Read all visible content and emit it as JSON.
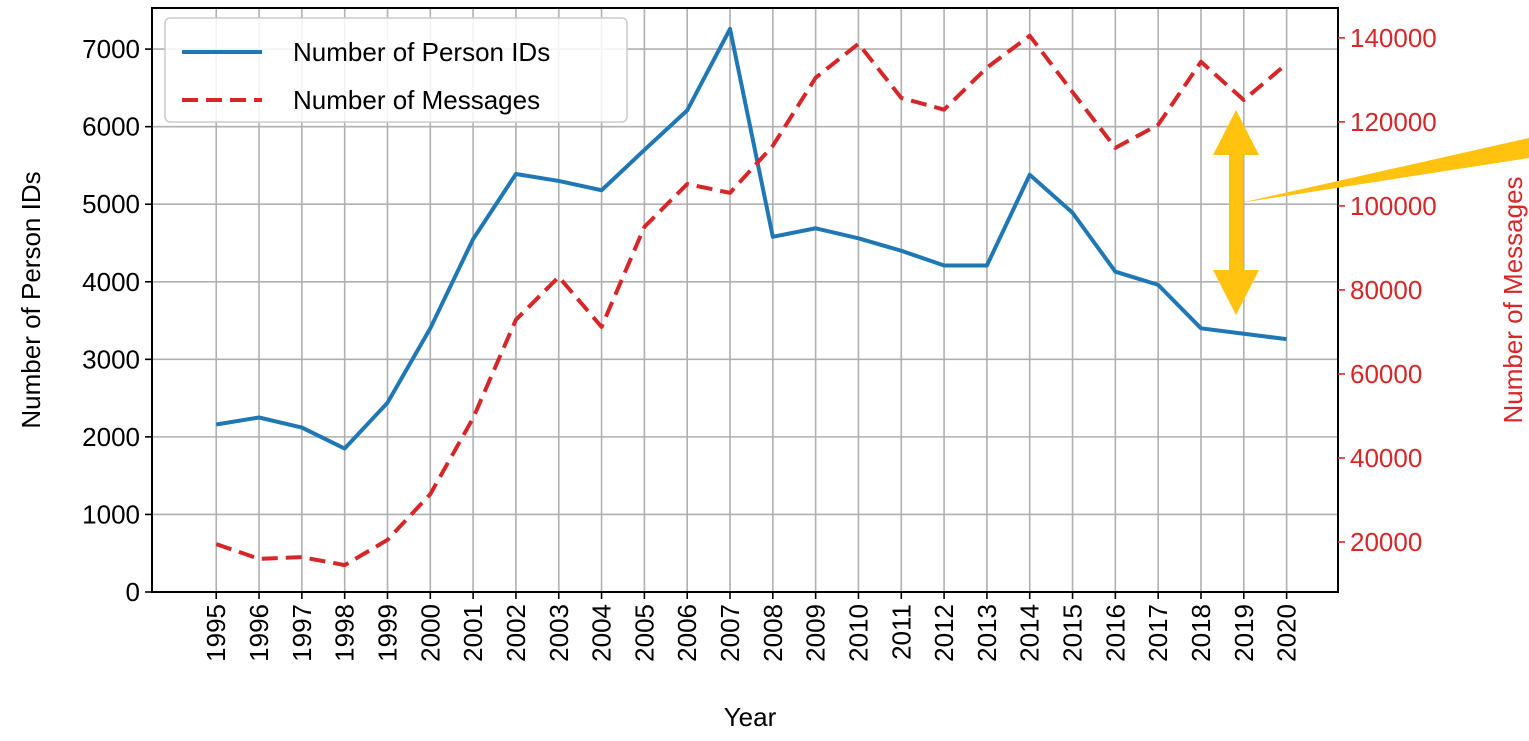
{
  "chart_data": {
    "type": "line",
    "xlabel": "Year",
    "ylabel": "Number of Person IDs",
    "y2label": "Number of Messages",
    "x": [
      1995,
      1996,
      1997,
      1998,
      1999,
      2000,
      2001,
      2002,
      2003,
      2004,
      2005,
      2006,
      2007,
      2008,
      2009,
      2010,
      2011,
      2012,
      2013,
      2014,
      2015,
      2016,
      2017,
      2018,
      2019,
      2020
    ],
    "xlim": [
      1993.5,
      2021.2
    ],
    "xticks": [
      1995,
      1996,
      1997,
      1998,
      1999,
      2000,
      2001,
      2002,
      2003,
      2004,
      2005,
      2006,
      2007,
      2008,
      2009,
      2010,
      2011,
      2012,
      2013,
      2014,
      2015,
      2016,
      2017,
      2018,
      2019,
      2020
    ],
    "ylim": [
      0,
      7530
    ],
    "yticks": [
      0,
      1000,
      2000,
      3000,
      4000,
      5000,
      6000,
      7000
    ],
    "y2lim": [
      8100,
      147100
    ],
    "y2ticks": [
      20000,
      40000,
      60000,
      80000,
      100000,
      120000,
      140000
    ],
    "grid": true,
    "legend": "upper left",
    "series": [
      {
        "name": "Number of Person IDs",
        "color": "#1f77b4",
        "dash": "solid",
        "values": [
          2160,
          2250,
          2120,
          1850,
          2440,
          3400,
          4550,
          5390,
          5300,
          5180,
          5700,
          6210,
          7260,
          4580,
          4690,
          4560,
          4400,
          4210,
          4210,
          5380,
          4890,
          4130,
          3960,
          3400,
          3330,
          3260
        ]
      },
      {
        "name": "Number of Messages",
        "color": "#d62728",
        "dash": "dashed",
        "axis": "y2",
        "values": [
          19500,
          16000,
          16400,
          14500,
          20500,
          31400,
          49500,
          72900,
          83100,
          71200,
          95000,
          105200,
          103100,
          114300,
          130500,
          138600,
          125700,
          122900,
          132900,
          140500,
          127100,
          113800,
          119300,
          134300,
          125200,
          133800
        ]
      }
    ]
  }
}
